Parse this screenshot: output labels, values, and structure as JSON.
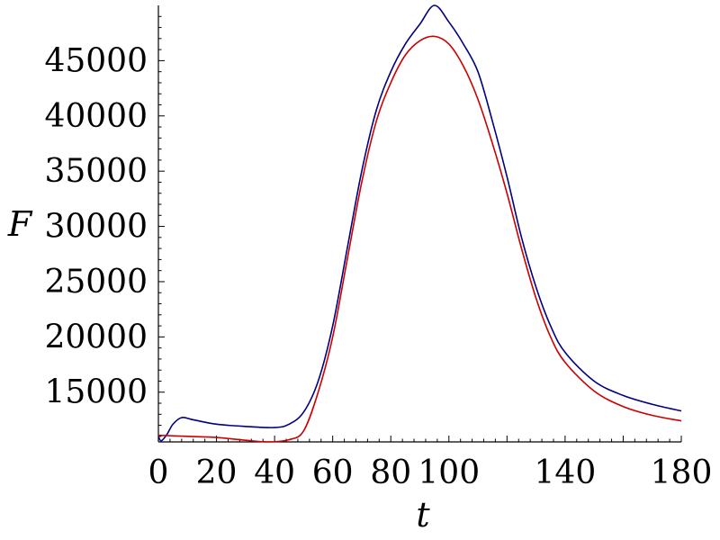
{
  "chart_data": {
    "type": "line",
    "xlabel": "t",
    "ylabel": "F",
    "xlim": [
      0,
      180
    ],
    "ylim": [
      10500,
      50000
    ],
    "x_ticks": [
      0,
      20,
      40,
      60,
      80,
      100,
      140,
      180
    ],
    "x_tick_labels": [
      "0",
      "20",
      "40",
      "60",
      "80",
      "100",
      "140",
      "180"
    ],
    "y_ticks": [
      15000,
      20000,
      25000,
      30000,
      35000,
      40000,
      45000
    ],
    "y_tick_labels": [
      "15000",
      "20000",
      "25000",
      "30000",
      "35000",
      "40000",
      "45000"
    ],
    "grid": false,
    "series": [
      {
        "color": "#000080",
        "x": [
          0,
          1,
          3,
          5,
          8,
          12,
          20,
          30,
          40,
          45,
          50,
          55,
          60,
          65,
          70,
          75,
          80,
          85,
          90,
          95,
          100,
          105,
          110,
          115,
          120,
          125,
          130,
          135,
          140,
          150,
          160,
          170,
          180
        ],
        "y": [
          11000,
          10600,
          11200,
          12100,
          12700,
          12500,
          12100,
          11900,
          11800,
          12100,
          13200,
          16000,
          21000,
          28000,
          35000,
          40500,
          44000,
          46500,
          48300,
          50000,
          48500,
          46500,
          44000,
          39500,
          34500,
          29000,
          24500,
          21000,
          18600,
          16000,
          14700,
          13900,
          13300
        ]
      },
      {
        "color": "#cc0000",
        "x": [
          0,
          10,
          20,
          30,
          38,
          45,
          50,
          55,
          60,
          65,
          70,
          75,
          80,
          85,
          90,
          95,
          100,
          105,
          110,
          115,
          120,
          125,
          130,
          135,
          140,
          150,
          160,
          170,
          180
        ],
        "y": [
          11100,
          11000,
          10900,
          10650,
          10500,
          10700,
          11500,
          15000,
          20000,
          27000,
          34000,
          39500,
          43000,
          45500,
          46800,
          47200,
          46500,
          44500,
          41500,
          37500,
          33000,
          28000,
          23500,
          20000,
          17700,
          15100,
          13700,
          12900,
          12400
        ]
      }
    ]
  }
}
